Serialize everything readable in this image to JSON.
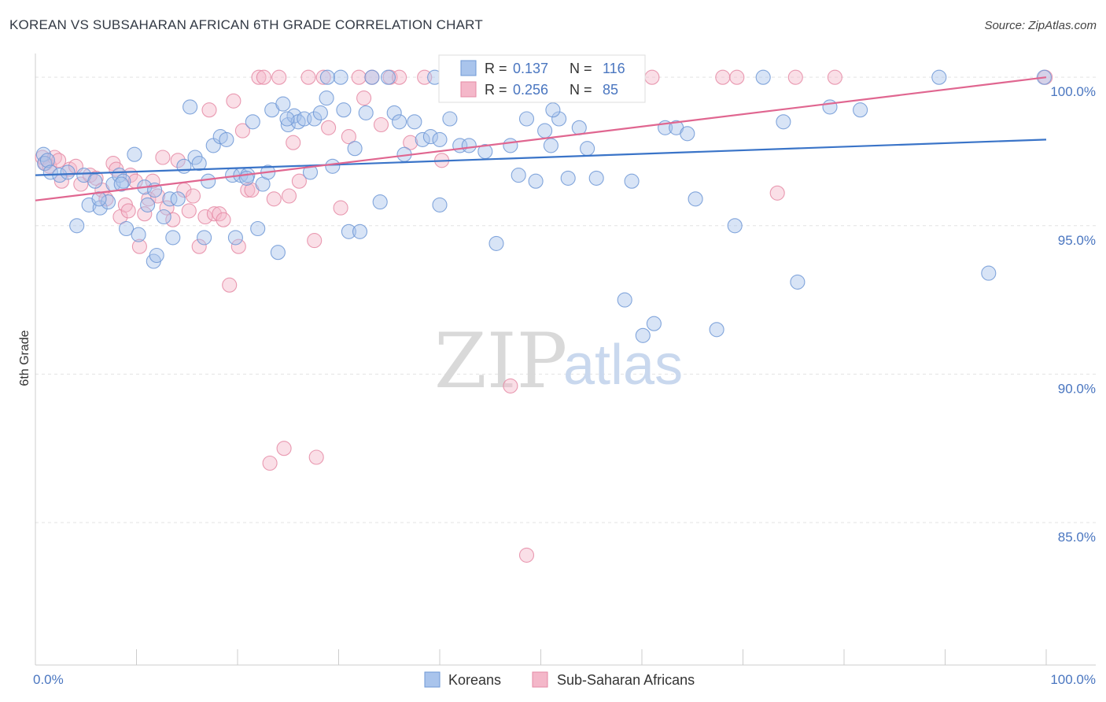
{
  "title": "KOREAN VS SUBSAHARAN AFRICAN 6TH GRADE CORRELATION CHART",
  "source": "Source: ZipAtlas.com",
  "watermark": {
    "zip": "ZIP",
    "atlas": "atlas"
  },
  "colors": {
    "korean_fill": "#a9c4ec",
    "korean_stroke": "#6e98d6",
    "korean_line": "#3a74c8",
    "african_fill": "#f4b7c9",
    "african_stroke": "#e58aa5",
    "african_line": "#e06690",
    "axis_text": "#4a76c0",
    "grid": "#e3e3e3"
  },
  "legend_top": {
    "rows": [
      {
        "r_label": "R =",
        "r_value": "0.137",
        "n_label": "N =",
        "n_value": "116"
      },
      {
        "r_label": "R =",
        "r_value": "0.256",
        "n_label": "N =",
        "n_value": "85"
      }
    ]
  },
  "legend_bottom": {
    "items": [
      "Koreans",
      "Sub-Saharan Africans"
    ]
  },
  "chart_data": {
    "type": "scatter",
    "title": "KOREAN VS SUBSAHARAN AFRICAN 6TH GRADE CORRELATION CHART",
    "xlabel": "",
    "ylabel": "6th Grade",
    "xlim": [
      0,
      100
    ],
    "ylim": [
      80.2,
      100.8
    ],
    "x_tick_labels": [
      "0.0%",
      "100.0%"
    ],
    "y_ticks": [
      85,
      90,
      95,
      100
    ],
    "y_tick_labels": [
      "85.0%",
      "90.0%",
      "95.0%",
      "100.0%"
    ],
    "grid": true,
    "legend_position": "top-center",
    "series": [
      {
        "name": "Koreans",
        "r": 0.137,
        "n": 116,
        "trend": {
          "x": [
            0,
            100
          ],
          "y": [
            96.7,
            97.9
          ]
        },
        "points": [
          [
            0.8,
            97.4
          ],
          [
            0.9,
            97.1
          ],
          [
            1.2,
            97.2
          ],
          [
            1.5,
            96.8
          ],
          [
            2.4,
            96.7
          ],
          [
            3.2,
            96.8
          ],
          [
            4.1,
            95.0
          ],
          [
            4.8,
            96.7
          ],
          [
            5.3,
            95.7
          ],
          [
            5.9,
            96.5
          ],
          [
            6.4,
            95.6
          ],
          [
            7.2,
            95.8
          ],
          [
            7.7,
            96.4
          ],
          [
            8.3,
            96.7
          ],
          [
            8.7,
            96.5
          ],
          [
            9.0,
            94.9
          ],
          [
            9.8,
            97.4
          ],
          [
            10.2,
            94.7
          ],
          [
            10.8,
            96.3
          ],
          [
            11.1,
            95.7
          ],
          [
            11.7,
            93.8
          ],
          [
            12.0,
            94.0
          ],
          [
            12.7,
            95.3
          ],
          [
            13.3,
            95.9
          ],
          [
            13.6,
            94.6
          ],
          [
            14.1,
            95.9
          ],
          [
            14.7,
            97.0
          ],
          [
            15.3,
            99.0
          ],
          [
            15.8,
            97.3
          ],
          [
            16.2,
            97.1
          ],
          [
            16.7,
            94.6
          ],
          [
            17.1,
            96.5
          ],
          [
            17.6,
            97.7
          ],
          [
            18.3,
            98.0
          ],
          [
            18.9,
            97.9
          ],
          [
            19.5,
            96.7
          ],
          [
            19.8,
            94.6
          ],
          [
            20.3,
            96.7
          ],
          [
            21.0,
            96.7
          ],
          [
            21.5,
            98.5
          ],
          [
            22.0,
            94.9
          ],
          [
            22.5,
            96.4
          ],
          [
            23.0,
            96.8
          ],
          [
            23.4,
            98.9
          ],
          [
            24.0,
            94.1
          ],
          [
            24.5,
            99.1
          ],
          [
            25.0,
            98.4
          ],
          [
            25.6,
            98.7
          ],
          [
            26.0,
            98.5
          ],
          [
            26.6,
            98.6
          ],
          [
            27.2,
            96.8
          ],
          [
            27.6,
            98.6
          ],
          [
            28.2,
            98.8
          ],
          [
            28.8,
            99.3
          ],
          [
            29.4,
            97.0
          ],
          [
            30.2,
            100.0
          ],
          [
            31.0,
            94.8
          ],
          [
            31.6,
            97.6
          ],
          [
            32.1,
            94.8
          ],
          [
            32.7,
            98.8
          ],
          [
            33.3,
            100.0
          ],
          [
            34.1,
            95.8
          ],
          [
            34.9,
            100.0
          ],
          [
            35.5,
            98.8
          ],
          [
            36.0,
            98.5
          ],
          [
            36.5,
            97.4
          ],
          [
            37.5,
            98.5
          ],
          [
            38.3,
            97.9
          ],
          [
            39.1,
            98.0
          ],
          [
            40.0,
            95.7
          ],
          [
            41.0,
            98.6
          ],
          [
            42.0,
            97.7
          ],
          [
            42.9,
            97.7
          ],
          [
            44.5,
            97.5
          ],
          [
            45.6,
            94.4
          ],
          [
            47.0,
            97.7
          ],
          [
            47.8,
            96.7
          ],
          [
            48.6,
            98.6
          ],
          [
            49.5,
            96.5
          ],
          [
            50.4,
            98.2
          ],
          [
            51.0,
            97.7
          ],
          [
            51.8,
            98.6
          ],
          [
            52.7,
            96.6
          ],
          [
            53.8,
            98.3
          ],
          [
            54.6,
            97.6
          ],
          [
            55.5,
            96.6
          ],
          [
            57.0,
            100.0
          ],
          [
            58.3,
            92.5
          ],
          [
            59.0,
            96.5
          ],
          [
            60.1,
            91.3
          ],
          [
            61.2,
            91.7
          ],
          [
            62.3,
            98.3
          ],
          [
            63.4,
            98.3
          ],
          [
            64.5,
            98.1
          ],
          [
            65.3,
            95.9
          ],
          [
            67.4,
            91.5
          ],
          [
            69.2,
            95.0
          ],
          [
            72.0,
            100.0
          ],
          [
            74.0,
            98.5
          ],
          [
            75.4,
            93.1
          ],
          [
            78.6,
            99.0
          ],
          [
            81.6,
            98.9
          ],
          [
            89.4,
            100.0
          ],
          [
            94.3,
            93.4
          ],
          [
            99.8,
            100.0
          ],
          [
            51.2,
            98.9
          ],
          [
            39.5,
            100.0
          ],
          [
            40.0,
            97.9
          ],
          [
            50.1,
            100.0
          ],
          [
            24.9,
            98.6
          ],
          [
            30.5,
            98.9
          ],
          [
            20.9,
            96.6
          ],
          [
            8.5,
            96.4
          ],
          [
            6.3,
            95.9
          ],
          [
            11.8,
            96.2
          ],
          [
            28.9,
            100.0
          ]
        ]
      },
      {
        "name": "Sub-Saharan Africans",
        "r": 0.256,
        "n": 85,
        "trend": {
          "x": [
            0,
            100
          ],
          "y": [
            95.85,
            100.0
          ]
        },
        "points": [
          [
            0.7,
            97.3
          ],
          [
            1.0,
            97.1
          ],
          [
            1.4,
            97.0
          ],
          [
            1.9,
            97.3
          ],
          [
            2.6,
            96.5
          ],
          [
            3.4,
            96.9
          ],
          [
            4.0,
            97.0
          ],
          [
            4.5,
            96.4
          ],
          [
            5.4,
            96.7
          ],
          [
            6.0,
            96.6
          ],
          [
            6.6,
            96.2
          ],
          [
            7.0,
            95.9
          ],
          [
            7.7,
            97.1
          ],
          [
            8.0,
            96.9
          ],
          [
            8.4,
            95.3
          ],
          [
            8.9,
            95.7
          ],
          [
            9.4,
            96.7
          ],
          [
            9.9,
            96.5
          ],
          [
            10.3,
            94.3
          ],
          [
            10.8,
            95.4
          ],
          [
            11.2,
            95.9
          ],
          [
            11.6,
            96.5
          ],
          [
            12.1,
            96.0
          ],
          [
            12.6,
            97.3
          ],
          [
            13.0,
            95.6
          ],
          [
            13.6,
            95.2
          ],
          [
            14.1,
            97.2
          ],
          [
            14.7,
            96.2
          ],
          [
            15.2,
            95.5
          ],
          [
            15.6,
            96.0
          ],
          [
            16.2,
            94.3
          ],
          [
            16.8,
            95.3
          ],
          [
            17.2,
            98.9
          ],
          [
            17.7,
            95.4
          ],
          [
            18.2,
            95.4
          ],
          [
            18.6,
            95.2
          ],
          [
            19.2,
            93.0
          ],
          [
            19.6,
            99.2
          ],
          [
            20.1,
            94.3
          ],
          [
            20.5,
            98.2
          ],
          [
            21.0,
            96.2
          ],
          [
            21.4,
            96.2
          ],
          [
            22.1,
            100.0
          ],
          [
            22.6,
            100.0
          ],
          [
            23.2,
            87.0
          ],
          [
            23.6,
            95.9
          ],
          [
            24.1,
            100.0
          ],
          [
            24.6,
            87.5
          ],
          [
            25.1,
            96.0
          ],
          [
            25.5,
            97.8
          ],
          [
            26.1,
            96.5
          ],
          [
            27.0,
            100.0
          ],
          [
            27.6,
            94.5
          ],
          [
            27.8,
            87.2
          ],
          [
            28.5,
            100.0
          ],
          [
            29.0,
            98.3
          ],
          [
            30.2,
            95.6
          ],
          [
            31.0,
            98.0
          ],
          [
            32.0,
            100.0
          ],
          [
            32.5,
            99.3
          ],
          [
            33.3,
            100.0
          ],
          [
            34.2,
            98.4
          ],
          [
            35.1,
            100.0
          ],
          [
            36.0,
            100.0
          ],
          [
            37.1,
            97.8
          ],
          [
            38.5,
            100.0
          ],
          [
            40.2,
            97.2
          ],
          [
            41.5,
            100.0
          ],
          [
            43.0,
            100.0
          ],
          [
            45.8,
            100.0
          ],
          [
            47.0,
            89.6
          ],
          [
            48.6,
            83.9
          ],
          [
            50.5,
            100.0
          ],
          [
            52.0,
            100.0
          ],
          [
            55.5,
            100.0
          ],
          [
            59.2,
            100.0
          ],
          [
            61.0,
            100.0
          ],
          [
            68.0,
            100.0
          ],
          [
            69.4,
            100.0
          ],
          [
            73.4,
            96.1
          ],
          [
            75.2,
            100.0
          ],
          [
            79.1,
            100.0
          ],
          [
            99.9,
            100.0
          ],
          [
            2.3,
            97.2
          ],
          [
            9.2,
            95.5
          ]
        ]
      }
    ]
  }
}
